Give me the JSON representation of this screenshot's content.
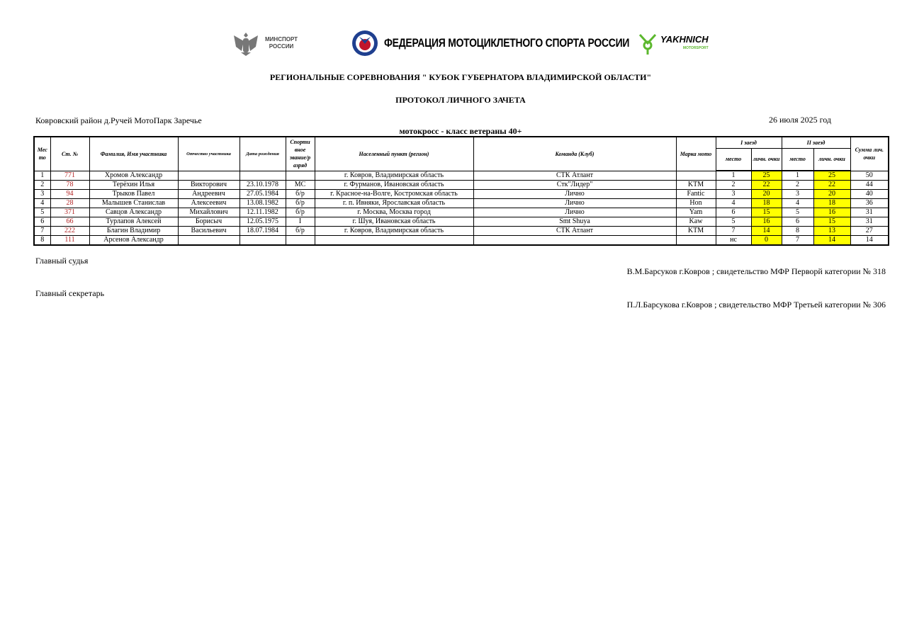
{
  "logos": {
    "minsport": "МИНСПОРТ РОССИИ",
    "federation": "ФЕДЕРАЦИЯ МОТОЦИКЛЕТНОГО СПОРТА РОССИИ",
    "sponsor": "YAKHNICH",
    "sponsor_sub": "MOTORSPORT"
  },
  "title": "РЕГИОНАЛЬНЫЕ СОРЕВНОВАНИЯ \" КУБОК ГУБЕРНАТОРА ВЛАДИМИРСКОЙ ОБЛАСТИ\"",
  "subtitle": "ПРОТОКОЛ ЛИЧНОГО ЗАЧЕТА",
  "venue": "Ковровский район д.Ручей МотоПарк Заречье",
  "date": "26 июля 2025 год",
  "class": "мотокросс - класс ветераны 40+",
  "headers": {
    "place": "Мес то",
    "number": "Ст. №",
    "name": "Фамилия, Имя участника",
    "patronymic": "Отчество участника",
    "birth": "Дата рождения",
    "rank": "Спорти вное звание/р азряд",
    "city": "Населенный пункт (регион)",
    "team": "Команда (Клуб)",
    "moto": "Марка мото",
    "race1": "I заезд",
    "race2": "II заезд",
    "total": "Сумма лич. очки",
    "r1place": "место",
    "r1points": "личн. очки",
    "r2place": "место",
    "r2points": "личн. очки"
  },
  "highlight_color": "#ffff00",
  "number_color": "#b22222",
  "rows": [
    {
      "place": "1",
      "number": "771",
      "name": "Хромов Александр",
      "patronymic": "",
      "birth": "",
      "rank": "",
      "city": "г. Ковров, Владимирская область",
      "team": "СТК Атлант",
      "moto": "",
      "r1place": "1",
      "r1points": "25",
      "r2place": "1",
      "r2points": "25",
      "total": "50"
    },
    {
      "place": "2",
      "number": "78",
      "name": "Терёхин Илья",
      "patronymic": "Викторович",
      "birth": "23.10.1978",
      "rank": "МС",
      "city": "г. Фурманов, Ивановская область",
      "team": "Стк\"Лидер\"",
      "moto": "KTM",
      "r1place": "2",
      "r1points": "22",
      "r2place": "2",
      "r2points": "22",
      "total": "44"
    },
    {
      "place": "3",
      "number": "94",
      "name": "Трыков Павел",
      "patronymic": "Андреевич",
      "birth": "27.05.1984",
      "rank": "б/р",
      "city": "г. Красное-на-Волге, Костромская область",
      "team": "Лично",
      "moto": "Fantic",
      "r1place": "3",
      "r1points": "20",
      "r2place": "3",
      "r2points": "20",
      "total": "40"
    },
    {
      "place": "4",
      "number": "28",
      "name": "Малышев Станислав",
      "patronymic": "Алексеевич",
      "birth": "13.08.1982",
      "rank": "б/р",
      "city": "г. п. Ивняки, Ярославская область",
      "team": "Лично",
      "moto": "Hon",
      "r1place": "4",
      "r1points": "18",
      "r2place": "4",
      "r2points": "18",
      "total": "36"
    },
    {
      "place": "5",
      "number": "371",
      "name": "Савцов Александр",
      "patronymic": "Михайлович",
      "birth": "12.11.1982",
      "rank": "б/р",
      "city": "г. Москва, Москва город",
      "team": "Лично",
      "moto": "Yam",
      "r1place": "6",
      "r1points": "15",
      "r2place": "5",
      "r2points": "16",
      "total": "31"
    },
    {
      "place": "6",
      "number": "66",
      "name": "Турлапов Алексей",
      "patronymic": "Борисыч",
      "birth": "12.05.1975",
      "rank": "I",
      "city": "г. Шуя, Ивановская область",
      "team": "Smt Shuya",
      "moto": "Kaw",
      "r1place": "5",
      "r1points": "16",
      "r2place": "6",
      "r2points": "15",
      "total": "31"
    },
    {
      "place": "7",
      "number": "222",
      "name": "Благин Владимир",
      "patronymic": "Васильевич",
      "birth": "18.07.1984",
      "rank": "б/р",
      "city": "г. Ковров, Владимирская область",
      "team": "СТК Атлант",
      "moto": "KTM",
      "r1place": "7",
      "r1points": "14",
      "r2place": "8",
      "r2points": "13",
      "total": "27"
    },
    {
      "place": "8",
      "number": "111",
      "name": "Арсенов Александр",
      "patronymic": "",
      "birth": "",
      "rank": "",
      "city": "",
      "team": "",
      "moto": "",
      "r1place": "нс",
      "r1points": "0",
      "r2place": "7",
      "r2points": "14",
      "total": "14"
    }
  ],
  "footer": {
    "judge_label": "Главный судья",
    "judge": "В.М.Барсуков г.Ковров ; свидетельство МФР Перворй категории № 318",
    "secretary_label": "Главный секретарь",
    "secretary": "П.Л.Барсукова г.Ковров ; свидетельство МФР Третьей категории № 306"
  }
}
